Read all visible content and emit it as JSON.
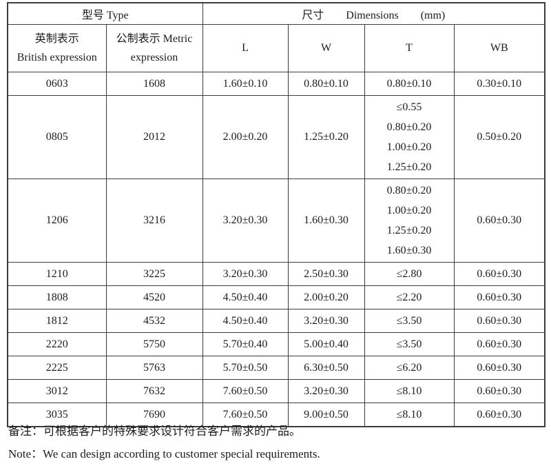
{
  "table": {
    "header": {
      "type_label": "型号 Type",
      "dimensions_label": "尺寸　　Dimensions　　(mm)",
      "col_british_cn": "英制表示",
      "col_british_en": "British expression",
      "col_metric_cn": "公制表示 Metric",
      "col_metric_en": "expression",
      "col_l": "L",
      "col_w": "W",
      "col_t": "T",
      "col_wb": "WB"
    },
    "rows": [
      {
        "british": "0603",
        "metric": "1608",
        "l": "1.60±0.10",
        "w": "0.80±0.10",
        "t": [
          "0.80±0.10"
        ],
        "wb": "0.30±0.10"
      },
      {
        "british": "0805",
        "metric": "2012",
        "l": "2.00±0.20",
        "w": "1.25±0.20",
        "t": [
          "≤0.55",
          "0.80±0.20",
          "1.00±0.20",
          "1.25±0.20"
        ],
        "wb": "0.50±0.20"
      },
      {
        "british": "1206",
        "metric": "3216",
        "l": "3.20±0.30",
        "w": "1.60±0.30",
        "t": [
          "0.80±0.20",
          "1.00±0.20",
          "1.25±0.20",
          "1.60±0.30"
        ],
        "wb": "0.60±0.30"
      },
      {
        "british": "1210",
        "metric": "3225",
        "l": "3.20±0.30",
        "w": "2.50±0.30",
        "t": [
          "≤2.80"
        ],
        "wb": "0.60±0.30"
      },
      {
        "british": "1808",
        "metric": "4520",
        "l": "4.50±0.40",
        "w": "2.00±0.20",
        "t": [
          "≤2.20"
        ],
        "wb": "0.60±0.30"
      },
      {
        "british": "1812",
        "metric": "4532",
        "l": "4.50±0.40",
        "w": "3.20±0.30",
        "t": [
          "≤3.50"
        ],
        "wb": "0.60±0.30"
      },
      {
        "british": "2220",
        "metric": "5750",
        "l": "5.70±0.40",
        "w": "5.00±0.40",
        "t": [
          "≤3.50"
        ],
        "wb": "0.60±0.30"
      },
      {
        "british": "2225",
        "metric": "5763",
        "l": "5.70±0.50",
        "w": "6.30±0.50",
        "t": [
          "≤6.20"
        ],
        "wb": "0.60±0.30"
      },
      {
        "british": "3012",
        "metric": "7632",
        "l": "7.60±0.50",
        "w": "3.20±0.30",
        "t": [
          "≤8.10"
        ],
        "wb": "0.60±0.30"
      },
      {
        "british": "3035",
        "metric": "7690",
        "l": "7.60±0.50",
        "w": "9.00±0.50",
        "t": [
          "≤8.10"
        ],
        "wb": "0.60±0.30"
      }
    ]
  },
  "notes": {
    "cn": "备注：可根据客户的特殊要求设计符合客户需求的产品。",
    "en": "Note：We can design according to customer special requirements."
  },
  "colors": {
    "border": "#3c3c3c",
    "text": "#1c1c1c",
    "background": "#ffffff"
  }
}
